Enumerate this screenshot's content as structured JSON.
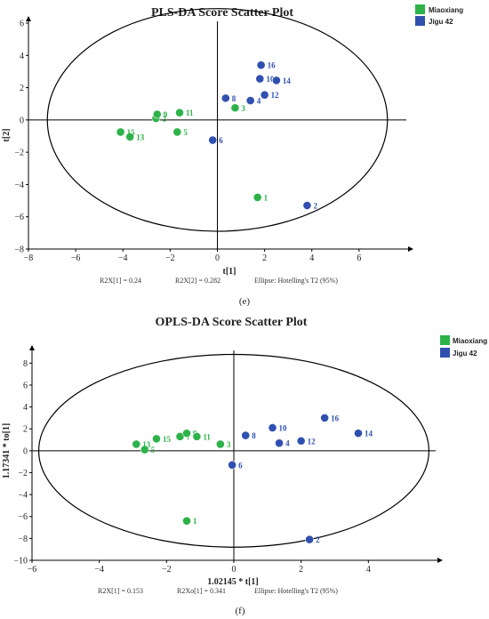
{
  "chart_data": [
    {
      "type": "scatter",
      "title": "PLS-DA Score Scatter Plot",
      "xlabel": "t[1]",
      "ylabel": "t[2]",
      "xlim": [
        -8,
        8
      ],
      "ylim": [
        -8,
        6
      ],
      "xticks": [
        -8,
        -6,
        -4,
        -2,
        0,
        2,
        4,
        6
      ],
      "yticks": [
        -8,
        -6,
        -4,
        -2,
        0,
        2,
        4,
        6
      ],
      "legend_position": "top-right",
      "footer": [
        "R2X[1] = 0.24",
        "R2X[2] = 0.282",
        "Ellipse: Hotelling's T2 (95%)"
      ],
      "panel_label": "(e)",
      "series": [
        {
          "name": "Miaoxiang",
          "color": "#2db24a",
          "points": [
            {
              "label": "1",
              "x": 1.7,
              "y": -4.8
            },
            {
              "label": "2",
              "x": -2.6,
              "y": 0.1
            },
            {
              "label": "3",
              "x": 0.75,
              "y": 0.75
            },
            {
              "label": "5",
              "x": -1.7,
              "y": -0.75
            },
            {
              "label": "9",
              "x": -2.55,
              "y": 0.35
            },
            {
              "label": "11",
              "x": -1.6,
              "y": 0.45
            },
            {
              "label": "13",
              "x": -3.7,
              "y": -1.05
            },
            {
              "label": "15",
              "x": -4.1,
              "y": -0.75
            }
          ]
        },
        {
          "name": "Jigu 42",
          "color": "#3050b0",
          "points": [
            {
              "label": "2",
              "x": 3.8,
              "y": -5.3
            },
            {
              "label": "4",
              "x": 1.4,
              "y": 1.2
            },
            {
              "label": "6",
              "x": -0.2,
              "y": -1.25
            },
            {
              "label": "8",
              "x": 0.35,
              "y": 1.35
            },
            {
              "label": "10",
              "x": 1.8,
              "y": 2.55
            },
            {
              "label": "12",
              "x": 2.0,
              "y": 1.55
            },
            {
              "label": "14",
              "x": 2.5,
              "y": 2.45
            },
            {
              "label": "16",
              "x": 1.85,
              "y": 3.4
            }
          ]
        }
      ]
    },
    {
      "type": "scatter",
      "title": "OPLS-DA Score Scatter Plot",
      "xlabel": "1.02145 * t[1]",
      "ylabel": "1.17341 * to[1]",
      "xlim": [
        -6,
        6
      ],
      "ylim": [
        -10,
        9
      ],
      "xticks": [
        -6,
        -4,
        -2,
        0,
        2,
        4
      ],
      "yticks": [
        -10,
        -8,
        -6,
        -4,
        -2,
        0,
        2,
        4,
        6,
        8
      ],
      "legend_position": "top-right",
      "footer": [
        "R2X[1] = 0.153",
        "R2Xo[1] = 0.341",
        "Ellipse: Hotelling's T2 (95%)"
      ],
      "panel_label": "(f)",
      "series": [
        {
          "name": "Miaoxiang",
          "color": "#2db24a",
          "points": [
            {
              "label": "1",
              "x": -1.4,
              "y": -6.4
            },
            {
              "label": "3",
              "x": -0.4,
              "y": 0.6
            },
            {
              "label": "5",
              "x": -2.65,
              "y": 0.1
            },
            {
              "label": "7",
              "x": -1.6,
              "y": 1.3
            },
            {
              "label": "9",
              "x": -1.4,
              "y": 1.6
            },
            {
              "label": "11",
              "x": -1.1,
              "y": 1.3
            },
            {
              "label": "13",
              "x": -2.9,
              "y": 0.6
            },
            {
              "label": "15",
              "x": -2.3,
              "y": 1.1
            }
          ]
        },
        {
          "name": "Jigu 42",
          "color": "#3050b0",
          "points": [
            {
              "label": "2",
              "x": 2.25,
              "y": -8.1
            },
            {
              "label": "4",
              "x": 1.35,
              "y": 0.7
            },
            {
              "label": "6",
              "x": -0.05,
              "y": -1.3
            },
            {
              "label": "8",
              "x": 0.35,
              "y": 1.4
            },
            {
              "label": "10",
              "x": 1.15,
              "y": 2.1
            },
            {
              "label": "12",
              "x": 2.0,
              "y": 0.9
            },
            {
              "label": "14",
              "x": 3.7,
              "y": 1.6
            },
            {
              "label": "16",
              "x": 2.7,
              "y": 3.0
            }
          ]
        }
      ]
    }
  ]
}
